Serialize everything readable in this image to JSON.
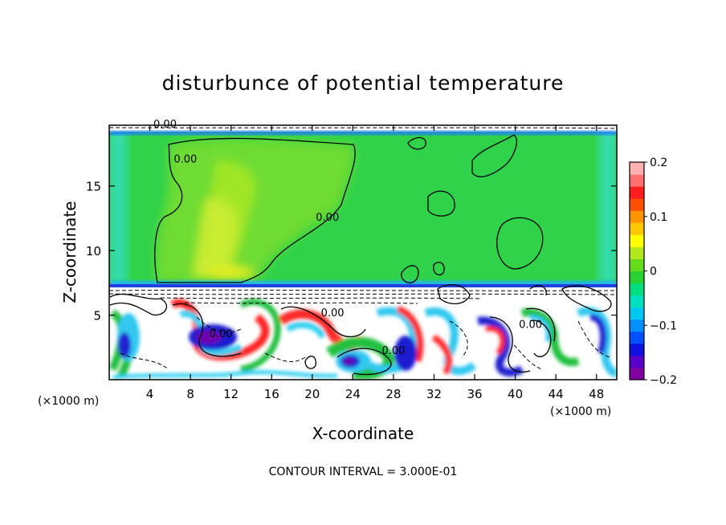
{
  "chart_data": {
    "type": "heatmap",
    "title": "disturbunce of potential temperature",
    "xlabel": "X-coordinate",
    "ylabel": "Z-coordinate",
    "x_unit": "(×1000 m)",
    "y_unit": "(×1000 m)",
    "xlim": [
      0,
      50
    ],
    "ylim": [
      0,
      19.7
    ],
    "x_ticks": [
      4,
      8,
      12,
      16,
      20,
      24,
      28,
      32,
      36,
      40,
      44,
      48
    ],
    "y_ticks": [
      5,
      10,
      15
    ],
    "colorbar": {
      "range": [
        -0.2,
        0.2
      ],
      "tick_values": [
        0.2,
        0.1,
        0,
        -0.1,
        -0.2
      ],
      "tick_labels": [
        "0.2",
        "0.1",
        "0",
        "−0.1",
        "−0.2"
      ],
      "colors": [
        "#8000a0",
        "#5a00c8",
        "#1010e0",
        "#0050ff",
        "#0090ff",
        "#00c8f0",
        "#00e0c0",
        "#00dc80",
        "#28d232",
        "#64dc1e",
        "#b4e61e",
        "#ffff00",
        "#ffc800",
        "#ff9600",
        "#ff5000",
        "#ff1e1e",
        "#ff7070",
        "#ffb0b0"
      ]
    },
    "contour_labels": [
      {
        "text": "0.00",
        "x": 7.5,
        "y": 16.8
      },
      {
        "text": "0.00",
        "x": 21.5,
        "y": 12.3
      },
      {
        "text": "0.00",
        "x": 11,
        "y": 3.3
      },
      {
        "text": "0.00",
        "x": 22,
        "y": 4.9
      },
      {
        "text": "0.00",
        "x": 28,
        "y": 2.0
      },
      {
        "text": "0.00",
        "x": 41.5,
        "y": 4.0
      },
      {
        "text": "0.00",
        "x": 5.5,
        "y": 19.5
      }
    ],
    "contour_interval_text": "CONTOUR INTERVAL = 3.000E-01"
  }
}
